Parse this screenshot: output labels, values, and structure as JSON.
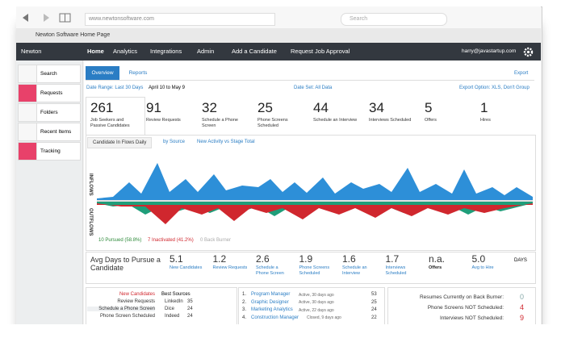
{
  "browser": {
    "url": "www.newtonsoftware.com",
    "search": "Search",
    "tab": "Newton Software Home Page"
  },
  "nav": {
    "brand": "Newton",
    "items": [
      "Home",
      "Analytics",
      "Integrations",
      "Admin",
      "Add a Candidate",
      "Request Job Approval"
    ],
    "user": "harry@javastartup.com"
  },
  "sidebar": [
    "Search",
    "Requests",
    "Folders",
    "Recent Items",
    "Tracking"
  ],
  "tabs": {
    "items": [
      "Overview",
      "Reports"
    ],
    "export": "Export"
  },
  "filters": {
    "date_range": "Date Range: Last 30 Days",
    "dates": "April 10 to May 9",
    "date_set": "Date Set: All Data",
    "export_option": "Export Option: XLS, Don't Group"
  },
  "stats": [
    {
      "value": 261,
      "label": "Job Seekers and Passive Candidates"
    },
    {
      "value": 91,
      "label": "Review Requests"
    },
    {
      "value": 32,
      "label": "Schedule a Phone Screen"
    },
    {
      "value": 25,
      "label": "Phone Screens Scheduled"
    },
    {
      "value": 44,
      "label": "Schedule an Interview"
    },
    {
      "value": 34,
      "label": "Interviews Scheduled"
    },
    {
      "value": 5,
      "label": "Offers"
    },
    {
      "value": 1,
      "label": "Hires"
    }
  ],
  "chart": {
    "tabs": [
      "Candidate In Flows Daily",
      "by Source",
      "New Activity vs Stage Total"
    ],
    "inflows": "INFLOWS",
    "outflows": "OUTFLOWS",
    "legend": [
      "10 Pursued (58.8%)",
      "7 Inactivated (41.2%)",
      "0 Back Burner"
    ]
  },
  "averages": {
    "title": "Avg Days to Pursue a Candidate",
    "items": [
      {
        "value": 5.1,
        "label": "New Candidates"
      },
      {
        "value": 1.2,
        "label": "Review Requests"
      },
      {
        "value": 2.6,
        "label": "Schedule a Phone Screen"
      },
      {
        "value": 1.9,
        "label": "Phone Screens Scheduled"
      },
      {
        "value": 1.6,
        "label": "Schedule an Interview"
      },
      {
        "value": 1.7,
        "label": "Interviews Scheduled"
      },
      {
        "value": "n.a.",
        "label": "Offers"
      },
      {
        "value": "5.0",
        "label": "Avg to Hire"
      }
    ],
    "unit": "DAYS"
  },
  "stages": {
    "items": [
      "New Candidates",
      "Review Requests",
      "Schedule a Phone Screen",
      "Phone Screen Scheduled"
    ],
    "sources_title": "Best Sources",
    "sources": [
      {
        "name": "LinkedIn",
        "count": 35
      },
      {
        "name": "Dice",
        "count": 24
      },
      {
        "name": "Indeed",
        "count": 24
      }
    ]
  },
  "jobs": [
    {
      "rank": "1.",
      "title": "Program Manager",
      "status": "Active, 30 days ago",
      "count": 53
    },
    {
      "rank": "2.",
      "title": "Graphic Designer",
      "status": "Active, 30 days ago",
      "count": 25
    },
    {
      "rank": "3.",
      "title": "Marketing Analytics",
      "status": "Active, 22 days ago",
      "count": 24
    },
    {
      "rank": "4.",
      "title": "Construction Manager",
      "status": "Closed, 9 days ago",
      "count": 22
    }
  ],
  "alerts": [
    {
      "label": "Resumes Currently on Back Burner:",
      "value": 0
    },
    {
      "label": "Phone Screens NOT Scheduled:",
      "value": 4
    },
    {
      "label": "Interviews NOT Scheduled:",
      "value": 9
    }
  ]
}
